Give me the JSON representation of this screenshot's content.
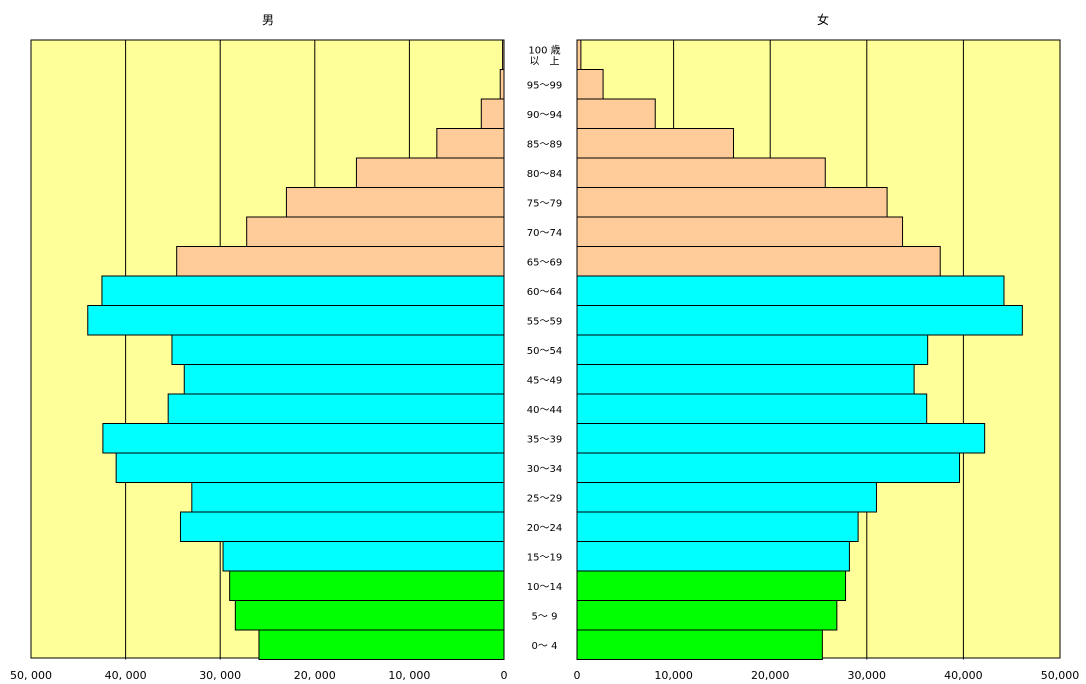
{
  "chart_data": {
    "type": "bar",
    "orientation": "horizontal-population-pyramid",
    "left_title": "男",
    "right_title": "女",
    "age_groups": [
      {
        "label": "100 歳\n以　上"
      },
      {
        "label": "95～99"
      },
      {
        "label": "90～94"
      },
      {
        "label": "85～89"
      },
      {
        "label": "80～84"
      },
      {
        "label": "75～79"
      },
      {
        "label": "70～74"
      },
      {
        "label": "65～69"
      },
      {
        "label": "60～64"
      },
      {
        "label": "55～59"
      },
      {
        "label": "50～54"
      },
      {
        "label": "45～49"
      },
      {
        "label": "40～44"
      },
      {
        "label": "35～39"
      },
      {
        "label": "30～34"
      },
      {
        "label": "25～29"
      },
      {
        "label": "20～24"
      },
      {
        "label": "15～19"
      },
      {
        "label": "10～14"
      },
      {
        "label": "5～ 9"
      },
      {
        "label": "0～ 4"
      }
    ],
    "series": [
      {
        "values": [
          150,
          400,
          2400,
          7100,
          15600,
          23000,
          27200,
          34600,
          42500,
          44000,
          35100,
          33800,
          35500,
          42400,
          41000,
          33000,
          34200,
          29700,
          29000,
          28400,
          25900
        ]
      },
      {
        "values": [
          400,
          2700,
          8100,
          16200,
          25700,
          32100,
          33700,
          37600,
          44200,
          46100,
          36300,
          34900,
          36200,
          42200,
          39600,
          31000,
          29100,
          28200,
          27800,
          26900,
          25400
        ]
      }
    ],
    "group_colors": {
      "elderly": "#ffcc99",
      "working": "#00ffff",
      "young": "#00ff00"
    },
    "group_ranges": {
      "elderly": [
        0,
        7
      ],
      "working": [
        8,
        17
      ],
      "young": [
        18,
        20
      ]
    },
    "plot_background": "#ffff99",
    "left_axis_ticks": [
      "50, 000",
      "40, 000",
      "30, 000",
      "20, 000",
      "10, 000",
      "0"
    ],
    "right_axis_ticks": [
      "0",
      "10,000",
      "20,000",
      "30,000",
      "40,000",
      "50,000"
    ],
    "xlim": [
      0,
      50000
    ],
    "grid": true
  }
}
